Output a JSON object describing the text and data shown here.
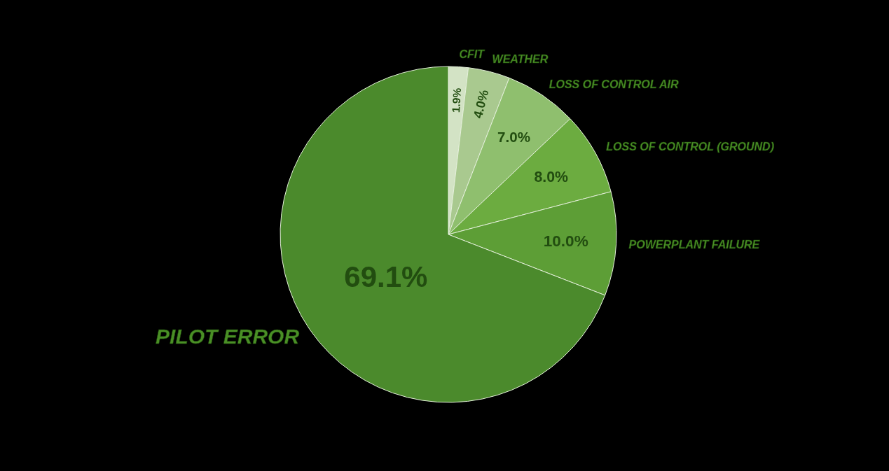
{
  "chart_data": {
    "type": "pie",
    "categories": [
      "CFIT",
      "WEATHER",
      "LOSS OF CONTROL AIR",
      "LOSS OF CONTROL (GROUND)",
      "POWERPLANT FAILURE",
      "PILOT ERROR"
    ],
    "values": [
      1.9,
      4.0,
      7.0,
      8.0,
      10.0,
      69.1
    ],
    "colors": [
      "#d3e3c5",
      "#a9c98f",
      "#8fbf6e",
      "#6cac40",
      "#5d9e36",
      "#4b8a2c"
    ],
    "value_labels": [
      "1.9%",
      "4.0%",
      "7.0%",
      "8.0%",
      "10.0%",
      "69.1%"
    ]
  }
}
